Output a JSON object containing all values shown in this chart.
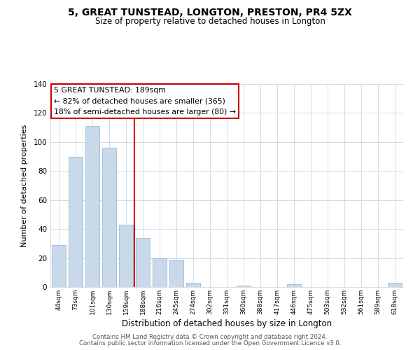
{
  "title": "5, GREAT TUNSTEAD, LONGTON, PRESTON, PR4 5ZX",
  "subtitle": "Size of property relative to detached houses in Longton",
  "xlabel": "Distribution of detached houses by size in Longton",
  "ylabel": "Number of detached properties",
  "bar_labels": [
    "44sqm",
    "73sqm",
    "101sqm",
    "130sqm",
    "159sqm",
    "188sqm",
    "216sqm",
    "245sqm",
    "274sqm",
    "302sqm",
    "331sqm",
    "360sqm",
    "388sqm",
    "417sqm",
    "446sqm",
    "475sqm",
    "503sqm",
    "532sqm",
    "561sqm",
    "589sqm",
    "618sqm"
  ],
  "bar_values": [
    29,
    90,
    111,
    96,
    43,
    34,
    20,
    19,
    3,
    0,
    0,
    1,
    0,
    0,
    2,
    0,
    0,
    0,
    0,
    0,
    3
  ],
  "bar_color": "#c8d9eb",
  "bar_edge_color": "#a0b8d0",
  "ylim": [
    0,
    140
  ],
  "yticks": [
    0,
    20,
    40,
    60,
    80,
    100,
    120,
    140
  ],
  "vline_x": 5,
  "vline_color": "#cc0000",
  "annotation_title": "5 GREAT TUNSTEAD: 189sqm",
  "annotation_line1": "← 82% of detached houses are smaller (365)",
  "annotation_line2": "18% of semi-detached houses are larger (80) →",
  "annotation_box_color": "#ffffff",
  "annotation_box_edge": "#cc0000",
  "footer_line1": "Contains HM Land Registry data © Crown copyright and database right 2024.",
  "footer_line2": "Contains public sector information licensed under the Open Government Licence v3.0.",
  "background_color": "#ffffff",
  "grid_color": "#d0dce8"
}
